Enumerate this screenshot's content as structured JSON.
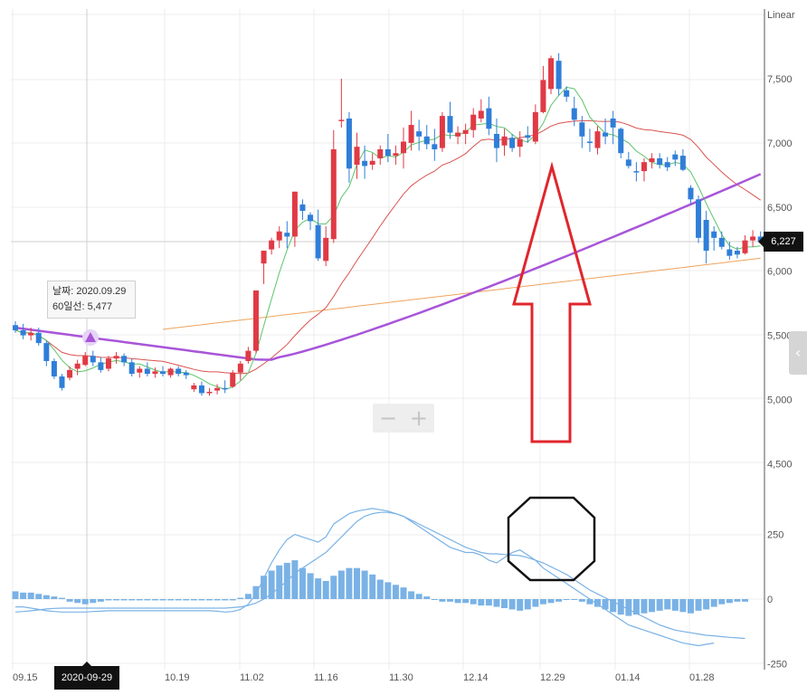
{
  "chart_data": {
    "type": "candlestick",
    "scale_label": "Linear",
    "price_axis": {
      "ticks": [
        "7,500",
        "7,000",
        "6,500",
        "6,000",
        "5,500",
        "5,000",
        "4,500"
      ],
      "range": [
        4500,
        7800
      ]
    },
    "indicator_axis": {
      "ticks": [
        "250",
        "0",
        "-250"
      ],
      "range": [
        -250,
        400
      ]
    },
    "x_labels": [
      "09.15",
      "10.19",
      "11.02",
      "11.16",
      "11.30",
      "12.14",
      "12.29",
      "01.14",
      "01.28"
    ],
    "crosshair_date": "2020-09-29",
    "current_price": "6,227",
    "current_price_value": 6227,
    "tooltip": {
      "date_label": "날짜: 2020.09.29",
      "ma_label": "60일선: 5,477"
    },
    "colors": {
      "up": "#e03a45",
      "down": "#2f7ed8",
      "ma5": "#5cc46a",
      "ma20": "#d9534f",
      "ma60": "#a855d8",
      "ma120": "#f0a35e",
      "macd": "#7ab2e6",
      "annotation": "#e0262c"
    },
    "ma60_marker_value": 5477,
    "candles": [
      [
        5580,
        5610,
        5520,
        5540
      ],
      [
        5540,
        5590,
        5470,
        5500
      ],
      [
        5500,
        5560,
        5460,
        5520
      ],
      [
        5520,
        5560,
        5420,
        5440
      ],
      [
        5440,
        5460,
        5260,
        5300
      ],
      [
        5300,
        5320,
        5160,
        5180
      ],
      [
        5180,
        5200,
        5070,
        5090
      ],
      [
        5170,
        5260,
        5150,
        5230
      ],
      [
        5240,
        5310,
        5190,
        5280
      ],
      [
        5270,
        5370,
        5260,
        5340
      ],
      [
        5340,
        5380,
        5260,
        5290
      ],
      [
        5290,
        5330,
        5210,
        5230
      ],
      [
        5240,
        5340,
        5220,
        5320
      ],
      [
        5320,
        5370,
        5280,
        5340
      ],
      [
        5340,
        5360,
        5260,
        5290
      ],
      [
        5290,
        5320,
        5180,
        5200
      ],
      [
        5210,
        5260,
        5170,
        5240
      ],
      [
        5240,
        5290,
        5180,
        5200
      ],
      [
        5200,
        5250,
        5170,
        5220
      ],
      [
        5220,
        5260,
        5180,
        5200
      ],
      [
        5190,
        5250,
        5170,
        5240
      ],
      [
        5240,
        5260,
        5180,
        5200
      ],
      [
        5210,
        5230,
        5160,
        5190
      ],
      [
        5080,
        5130,
        5060,
        5110
      ],
      [
        5110,
        5140,
        5030,
        5050
      ],
      [
        5060,
        5090,
        5030,
        5060
      ],
      [
        5070,
        5120,
        5040,
        5090
      ],
      [
        5090,
        5150,
        5050,
        5080
      ],
      [
        5100,
        5230,
        5090,
        5210
      ],
      [
        5210,
        5300,
        5150,
        5280
      ],
      [
        5300,
        5410,
        5280,
        5380
      ],
      [
        5380,
        5850,
        5360,
        5850
      ],
      [
        6060,
        6140,
        5900,
        6160
      ],
      [
        6170,
        6260,
        6130,
        6240
      ],
      [
        6240,
        6350,
        6180,
        6310
      ],
      [
        6300,
        6390,
        6180,
        6270
      ],
      [
        6270,
        6620,
        6190,
        6620
      ],
      [
        6520,
        6560,
        6400,
        6470
      ],
      [
        6440,
        6460,
        6320,
        6390
      ],
      [
        6360,
        6480,
        6080,
        6100
      ],
      [
        6080,
        6350,
        6040,
        6260
      ],
      [
        6250,
        7100,
        6220,
        6950
      ],
      [
        7170,
        7500,
        7120,
        7180
      ],
      [
        7190,
        7240,
        6690,
        6800
      ],
      [
        6830,
        7080,
        6720,
        6970
      ],
      [
        6860,
        6980,
        6720,
        6820
      ],
      [
        6830,
        6920,
        6790,
        6860
      ],
      [
        6880,
        6980,
        6830,
        6950
      ],
      [
        6950,
        7070,
        6850,
        6900
      ],
      [
        6900,
        6980,
        6830,
        6920
      ],
      [
        6920,
        7120,
        6800,
        7010
      ],
      [
        7000,
        7250,
        6940,
        7140
      ],
      [
        7090,
        7180,
        6940,
        7050
      ],
      [
        7050,
        7140,
        6950,
        6990
      ],
      [
        6990,
        7110,
        6860,
        6950
      ],
      [
        6960,
        7240,
        6930,
        7210
      ],
      [
        7210,
        7320,
        7030,
        7080
      ],
      [
        7050,
        7130,
        6990,
        7080
      ],
      [
        7070,
        7150,
        6990,
        7100
      ],
      [
        7100,
        7270,
        7040,
        7220
      ],
      [
        7190,
        7340,
        7160,
        7250
      ],
      [
        7270,
        7360,
        7060,
        7110
      ],
      [
        7070,
        7190,
        6850,
        6960
      ],
      [
        6980,
        7110,
        6900,
        7050
      ],
      [
        7040,
        7070,
        6930,
        6960
      ],
      [
        6970,
        7090,
        6890,
        7030
      ],
      [
        7060,
        7130,
        7000,
        7040
      ],
      [
        7010,
        7300,
        6990,
        7240
      ],
      [
        7240,
        7600,
        7230,
        7490
      ],
      [
        7420,
        7680,
        7380,
        7660
      ],
      [
        7640,
        7700,
        7370,
        7420
      ],
      [
        7410,
        7440,
        7320,
        7360
      ],
      [
        7270,
        7360,
        7130,
        7180
      ],
      [
        7160,
        7210,
        6960,
        7050
      ],
      [
        7010,
        7110,
        6930,
        7000
      ],
      [
        6960,
        7130,
        6910,
        7090
      ],
      [
        7080,
        7190,
        6990,
        7050
      ],
      [
        7190,
        7250,
        6990,
        7120
      ],
      [
        7110,
        7120,
        6880,
        6920
      ],
      [
        6870,
        6930,
        6800,
        6820
      ],
      [
        6780,
        6850,
        6700,
        6770
      ],
      [
        6780,
        6880,
        6700,
        6850
      ],
      [
        6850,
        6920,
        6800,
        6880
      ],
      [
        6880,
        6920,
        6800,
        6830
      ],
      [
        6850,
        6890,
        6780,
        6810
      ],
      [
        6910,
        6940,
        6820,
        6870
      ],
      [
        6900,
        6950,
        6780,
        6790
      ],
      [
        6650,
        6670,
        6520,
        6560
      ],
      [
        6560,
        6590,
        6220,
        6260
      ],
      [
        6400,
        6470,
        6060,
        6160
      ],
      [
        6310,
        6350,
        6160,
        6260
      ],
      [
        6260,
        6310,
        6170,
        6190
      ],
      [
        6170,
        6230,
        6090,
        6120
      ],
      [
        6160,
        6190,
        6100,
        6130
      ],
      [
        6140,
        6280,
        6130,
        6240
      ],
      [
        6240,
        6320,
        6190,
        6270
      ],
      [
        6270,
        6310,
        6220,
        6227
      ]
    ],
    "macd_hist": [
      30,
      25,
      25,
      20,
      15,
      10,
      5,
      -10,
      -15,
      -20,
      -15,
      -10,
      -5,
      -5,
      -5,
      -5,
      -5,
      -5,
      -5,
      -5,
      -5,
      -5,
      -5,
      -5,
      -5,
      -5,
      -5,
      -5,
      -5,
      5,
      20,
      50,
      90,
      110,
      130,
      140,
      150,
      120,
      100,
      80,
      70,
      90,
      110,
      120,
      120,
      110,
      95,
      75,
      65,
      55,
      45,
      30,
      20,
      10,
      0,
      -10,
      -10,
      -15,
      -15,
      -20,
      -25,
      -25,
      -30,
      -35,
      -40,
      -45,
      -40,
      -30,
      -20,
      -15,
      -10,
      0,
      0,
      -10,
      -20,
      -30,
      -40,
      -50,
      -60,
      -65,
      -60,
      -55,
      -50,
      -45,
      -40,
      -45,
      -50,
      -55,
      -45,
      -40,
      -30,
      -20,
      -15,
      -10,
      -10
    ],
    "macd_line": [
      -30,
      -30,
      -35,
      -40,
      -45,
      -48,
      -50,
      -50,
      -50,
      -50,
      -48,
      -47,
      -45,
      -45,
      -45,
      -45,
      -45,
      -45,
      -45,
      -45,
      -45,
      -45,
      -45,
      -45,
      -45,
      -45,
      -47,
      -50,
      -48,
      -40,
      -20,
      20,
      80,
      140,
      190,
      230,
      250,
      240,
      230,
      220,
      240,
      290,
      310,
      330,
      340,
      345,
      350,
      345,
      340,
      330,
      320,
      300,
      280,
      260,
      240,
      220,
      200,
      190,
      180,
      180,
      170,
      150,
      140,
      160,
      180,
      190,
      170,
      150,
      120,
      100,
      80,
      60,
      40,
      20,
      0,
      -20,
      -40,
      -60,
      -80,
      -100,
      -110,
      -120,
      -130,
      -140,
      -150,
      -160,
      -170,
      -175,
      -180,
      -175,
      -170
    ],
    "signal_line": [
      -50,
      -48,
      -45,
      -42,
      -38,
      -36,
      -35,
      -35,
      -35,
      -35,
      -35,
      -35,
      -35,
      -35,
      -35,
      -35,
      -35,
      -35,
      -35,
      -35,
      -35,
      -35,
      -35,
      -35,
      -35,
      -35,
      -35,
      -35,
      -33,
      -30,
      -25,
      -15,
      0,
      20,
      45,
      70,
      100,
      120,
      140,
      160,
      180,
      210,
      240,
      270,
      300,
      320,
      330,
      335,
      335,
      330,
      320,
      305,
      290,
      275,
      260,
      245,
      230,
      215,
      200,
      190,
      180,
      175,
      175,
      172,
      170,
      168,
      160,
      150,
      140,
      125,
      110,
      95,
      75,
      55,
      35,
      20,
      5,
      -10,
      -25,
      -40,
      -55,
      -70,
      -85,
      -100,
      -110,
      -120,
      -125,
      -130,
      -135,
      -140,
      -142,
      -145,
      -148,
      -150,
      -152
    ]
  },
  "annotations": {
    "arrow": "up-arrow-outline",
    "hexagon": "hexagon-outline"
  },
  "controls": {
    "zoom_out": "−",
    "zoom_in": "+",
    "side_tab": "‹"
  }
}
